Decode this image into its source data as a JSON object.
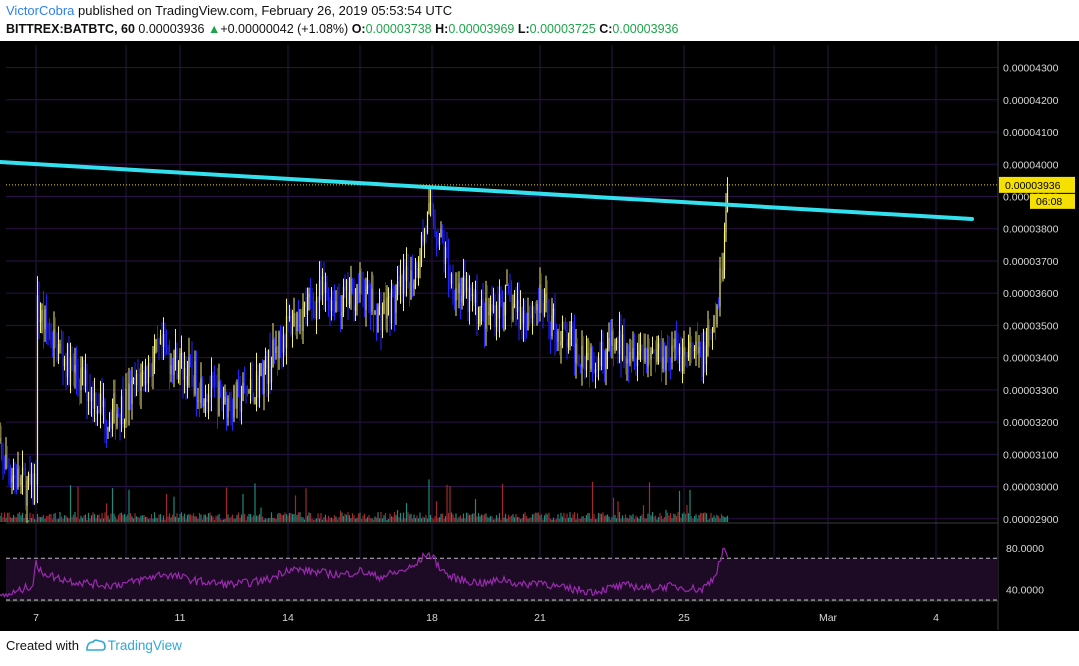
{
  "header": {
    "author": "VictorCobra",
    "published": "published on TradingView.com, February 26, 2019 05:53:54 UTC",
    "symbol": "BITTREX:BATBTC, 60",
    "last": "0.00003936",
    "change_arrow": "▲",
    "change": "+0.00000042 (+1.08%)",
    "o_label": "O:",
    "o": "0.00003738",
    "h_label": "H:",
    "h": "0.00003969",
    "l_label": "L:",
    "l": "0.00003725",
    "c_label": "C:",
    "c": "0.00003936"
  },
  "footer": {
    "created_with": "Created with",
    "brand": "TradingView"
  },
  "colors": {
    "background": "#000000",
    "grid": "#2a1248",
    "trendline": "#33e0ee",
    "candle_up": "#f5f07a",
    "candle_down": "#2323ff",
    "vol_up": "#1f8a7a",
    "vol_down": "#a02a2a",
    "rsi_line": "#9a2ab0",
    "rsi_band": "#1d0a24",
    "price_line": "#f5d800"
  },
  "chart_data": [
    {
      "type": "line",
      "chart": "price (candlestick)",
      "x": [
        "2019-02-05 20:00",
        "2019-02-06 00:00",
        "2019-02-06 12:00",
        "2019-02-06 22:00",
        "2019-02-07 00:00",
        "2019-02-07 01:00",
        "2019-02-07 06:00",
        "2019-02-07 12:00",
        "2019-02-08 00:00",
        "2019-02-08 12:00",
        "2019-02-09 00:00",
        "2019-02-09 12:00",
        "2019-02-10 00:00",
        "2019-02-10 12:00",
        "2019-02-11 00:00",
        "2019-02-11 12:00",
        "2019-02-12 00:00",
        "2019-02-12 12:00",
        "2019-02-13 00:00",
        "2019-02-13 12:00",
        "2019-02-14 00:00",
        "2019-02-14 12:00",
        "2019-02-15 00:00",
        "2019-02-15 12:00",
        "2019-02-16 00:00",
        "2019-02-16 12:00",
        "2019-02-17 00:00",
        "2019-02-17 12:00",
        "2019-02-17 20:00",
        "2019-02-18 00:00",
        "2019-02-18 06:00",
        "2019-02-18 12:00",
        "2019-02-19 00:00",
        "2019-02-19 12:00",
        "2019-02-20 00:00",
        "2019-02-20 12:00",
        "2019-02-21 00:00",
        "2019-02-21 12:00",
        "2019-02-22 00:00",
        "2019-02-22 12:00",
        "2019-02-23 00:00",
        "2019-02-23 12:00",
        "2019-02-24 00:00",
        "2019-02-24 12:00",
        "2019-02-25 00:00",
        "2019-02-25 12:00",
        "2019-02-25 20:00",
        "2019-02-26 00:00",
        "2019-02-26 03:00",
        "2019-02-26 05:00"
      ],
      "close": [
        3.16e-05,
        3.1e-05,
        3.02e-05,
        2.98e-05,
        3.05e-05,
        3.55e-05,
        3.5e-05,
        3.45e-05,
        3.36e-05,
        3.3e-05,
        3.22e-05,
        3.26e-05,
        3.35e-05,
        3.42e-05,
        3.38e-05,
        3.32e-05,
        3.28e-05,
        3.26e-05,
        3.3e-05,
        3.38e-05,
        3.5e-05,
        3.55e-05,
        3.6e-05,
        3.57e-05,
        3.62e-05,
        3.53e-05,
        3.58e-05,
        3.66e-05,
        3.81e-05,
        3.85e-05,
        3.76e-05,
        3.65e-05,
        3.58e-05,
        3.53e-05,
        3.58e-05,
        3.53e-05,
        3.57e-05,
        3.48e-05,
        3.43e-05,
        3.41e-05,
        3.43e-05,
        3.44e-05,
        3.42e-05,
        3.42e-05,
        3.41e-05,
        3.4e-05,
        3.48e-05,
        3.62e-05,
        3.78e-05,
        3.936e-05
      ],
      "title": "",
      "xlabel": "",
      "ylabel": "",
      "ylim": [
        2.89e-05,
        4.37e-05
      ],
      "y_ticks": [
        "0.00004300",
        "0.00004200",
        "0.00004100",
        "0.00004000",
        "0.00003900",
        "0.00003800",
        "0.00003700",
        "0.00003600",
        "0.00003500",
        "0.00003400",
        "0.00003300",
        "0.00003200",
        "0.00003100",
        "0.00003000",
        "0.00002900"
      ],
      "x_ticks": [
        "7",
        "11",
        "14",
        "18",
        "21",
        "25",
        "Mar",
        "4"
      ],
      "trendline": {
        "from": [
          "2019-02-05 13:00",
          4.01e-05
        ],
        "to": [
          "2019-03-05 00:00",
          3.83e-05
        ]
      },
      "last_price_label": "0.00003936",
      "countdown_label": "06:08",
      "grid": true
    },
    {
      "type": "line",
      "chart": "RSI",
      "ylim": [
        30,
        100
      ],
      "y_ticks": [
        "80.0000",
        "40.0000"
      ],
      "bands": [
        70,
        30
      ],
      "values": [
        36,
        33,
        38,
        45,
        70,
        58,
        56,
        52,
        48,
        46,
        44,
        46,
        50,
        55,
        52,
        48,
        46,
        45,
        47,
        50,
        60,
        58,
        56,
        54,
        58,
        52,
        56,
        62,
        74,
        72,
        60,
        52,
        48,
        46,
        50,
        44,
        48,
        42,
        40,
        38,
        42,
        44,
        41,
        43,
        42,
        40,
        52,
        68,
        80,
        72
      ]
    }
  ]
}
